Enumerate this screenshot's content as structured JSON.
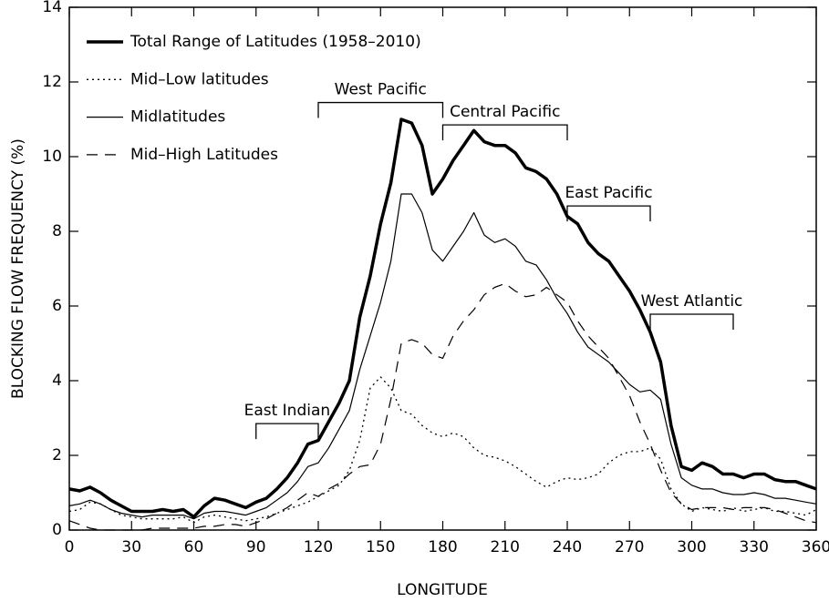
{
  "chart_data": {
    "type": "line",
    "xlabel": "LONGITUDE",
    "ylabel": "BLOCKING FLOW FREQUENCY (%)",
    "xlim": [
      0,
      360
    ],
    "xticks": [
      0,
      30,
      60,
      90,
      120,
      150,
      180,
      210,
      240,
      270,
      300,
      330,
      360
    ],
    "ylim": [
      0,
      14
    ],
    "yticks": [
      0,
      2,
      4,
      6,
      8,
      10,
      12,
      14
    ],
    "legend": "upper left",
    "x": [
      0,
      5,
      10,
      15,
      20,
      25,
      30,
      35,
      40,
      45,
      50,
      55,
      60,
      65,
      70,
      75,
      80,
      85,
      90,
      95,
      100,
      105,
      110,
      115,
      120,
      125,
      130,
      135,
      140,
      145,
      150,
      155,
      160,
      165,
      170,
      175,
      180,
      185,
      190,
      195,
      200,
      205,
      210,
      215,
      220,
      225,
      230,
      235,
      240,
      245,
      250,
      255,
      260,
      265,
      270,
      275,
      280,
      285,
      290,
      295,
      300,
      305,
      310,
      315,
      320,
      325,
      330,
      335,
      340,
      345,
      350,
      355,
      360
    ],
    "series": [
      {
        "name": "Total Range of Latitudes (1958–2010)",
        "color": "#000000",
        "style": "solid",
        "linewidth": 3.5,
        "values": [
          1.1,
          1.05,
          1.15,
          1.0,
          0.8,
          0.65,
          0.5,
          0.5,
          0.5,
          0.55,
          0.5,
          0.55,
          0.35,
          0.65,
          0.85,
          0.8,
          0.7,
          0.6,
          0.75,
          0.85,
          1.1,
          1.4,
          1.8,
          2.3,
          2.4,
          2.9,
          3.4,
          4.0,
          5.7,
          6.8,
          8.2,
          9.3,
          11.0,
          10.9,
          10.3,
          9.0,
          9.4,
          9.9,
          10.3,
          10.7,
          10.4,
          10.3,
          10.3,
          10.1,
          9.7,
          9.6,
          9.4,
          9.0,
          8.4,
          8.2,
          7.7,
          7.4,
          7.2,
          6.8,
          6.4,
          5.9,
          5.3,
          4.5,
          2.8,
          1.7,
          1.6,
          1.8,
          1.7,
          1.5,
          1.5,
          1.4,
          1.5,
          1.5,
          1.35,
          1.3,
          1.3,
          1.2,
          1.1
        ]
      },
      {
        "name": "Mid–Low latitudes",
        "color": "#000000",
        "style": "dotted",
        "linewidth": 1.3,
        "values": [
          0.5,
          0.55,
          0.75,
          0.7,
          0.55,
          0.4,
          0.35,
          0.3,
          0.3,
          0.3,
          0.3,
          0.35,
          0.2,
          0.35,
          0.4,
          0.35,
          0.3,
          0.25,
          0.3,
          0.35,
          0.45,
          0.55,
          0.65,
          0.75,
          0.9,
          1.05,
          1.2,
          1.6,
          2.4,
          3.8,
          4.1,
          3.8,
          3.2,
          3.1,
          2.8,
          2.6,
          2.5,
          2.6,
          2.5,
          2.2,
          2.0,
          1.95,
          1.85,
          1.7,
          1.5,
          1.3,
          1.15,
          1.3,
          1.4,
          1.35,
          1.4,
          1.5,
          1.8,
          2.0,
          2.1,
          2.1,
          2.2,
          1.9,
          1.1,
          0.7,
          0.5,
          0.6,
          0.55,
          0.5,
          0.6,
          0.5,
          0.55,
          0.6,
          0.5,
          0.5,
          0.45,
          0.4,
          0.55
        ]
      },
      {
        "name": "Midlatitudes",
        "color": "#000000",
        "style": "solid",
        "linewidth": 1.2,
        "values": [
          0.65,
          0.7,
          0.8,
          0.7,
          0.55,
          0.45,
          0.4,
          0.35,
          0.4,
          0.4,
          0.4,
          0.4,
          0.3,
          0.45,
          0.5,
          0.5,
          0.45,
          0.4,
          0.5,
          0.6,
          0.8,
          1.0,
          1.3,
          1.7,
          1.8,
          2.2,
          2.7,
          3.2,
          4.3,
          5.2,
          6.1,
          7.2,
          9.0,
          9.0,
          8.5,
          7.5,
          7.2,
          7.6,
          8.0,
          8.5,
          7.9,
          7.7,
          7.8,
          7.6,
          7.2,
          7.1,
          6.7,
          6.2,
          5.8,
          5.3,
          4.9,
          4.7,
          4.5,
          4.2,
          3.9,
          3.7,
          3.75,
          3.5,
          2.3,
          1.4,
          1.2,
          1.1,
          1.1,
          1.0,
          0.95,
          0.95,
          1.0,
          0.95,
          0.85,
          0.85,
          0.8,
          0.75,
          0.7
        ]
      },
      {
        "name": "Mid–High Latitudes",
        "color": "#000000",
        "style": "dashed",
        "linewidth": 1.2,
        "values": [
          0.25,
          0.15,
          0.05,
          0.0,
          0.0,
          0.0,
          0.0,
          0.0,
          0.05,
          0.05,
          0.05,
          0.05,
          0.05,
          0.1,
          0.1,
          0.15,
          0.15,
          0.1,
          0.2,
          0.3,
          0.45,
          0.6,
          0.8,
          1.0,
          0.9,
          1.1,
          1.25,
          1.5,
          1.7,
          1.75,
          2.3,
          3.5,
          5.0,
          5.1,
          5.0,
          4.7,
          4.6,
          5.2,
          5.6,
          5.9,
          6.3,
          6.5,
          6.6,
          6.4,
          6.25,
          6.3,
          6.5,
          6.3,
          6.1,
          5.6,
          5.2,
          4.9,
          4.6,
          4.1,
          3.6,
          2.9,
          2.3,
          1.6,
          1.0,
          0.7,
          0.55,
          0.6,
          0.6,
          0.6,
          0.55,
          0.6,
          0.6,
          0.6,
          0.55,
          0.45,
          0.35,
          0.25,
          0.2
        ]
      }
    ],
    "annotations": [
      {
        "text": "East Indian",
        "x": [
          90,
          120
        ],
        "y": 2.85
      },
      {
        "text": "West Pacific",
        "x": [
          120,
          180
        ],
        "y": 11.45
      },
      {
        "text": "Central Pacific",
        "x": [
          180,
          240
        ],
        "y": 10.85
      },
      {
        "text": "East Pacific",
        "x": [
          240,
          280
        ],
        "y": 8.68
      },
      {
        "text": "West Atlantic",
        "x": [
          280,
          320
        ],
        "y": 5.78
      }
    ]
  }
}
